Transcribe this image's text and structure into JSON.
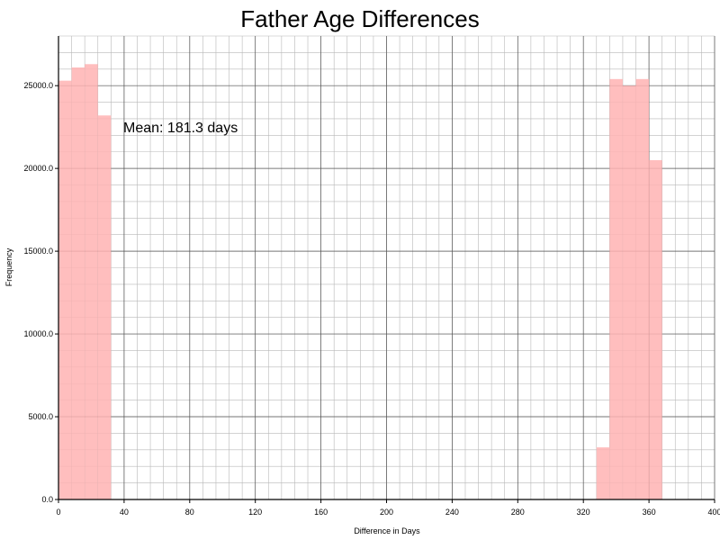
{
  "chart_data": {
    "type": "bar",
    "title": "Father Age Differences",
    "xlabel": "Difference in Days",
    "ylabel": "Frequency",
    "xlim": [
      0,
      400
    ],
    "ylim": [
      0,
      28000
    ],
    "xticks": [
      0,
      40,
      80,
      120,
      160,
      200,
      240,
      280,
      320,
      360,
      400
    ],
    "yticks": [
      "0.0",
      "5000.0",
      "10000.0",
      "15000.0",
      "20000.0",
      "25000.0"
    ],
    "grid": true,
    "bar_color": "#ffb3b3",
    "annotation": "Mean: 181.3 days",
    "bins": [
      {
        "x0": 0,
        "x1": 8,
        "value": 25300
      },
      {
        "x0": 8,
        "x1": 16,
        "value": 26100
      },
      {
        "x0": 16,
        "x1": 24,
        "value": 26300
      },
      {
        "x0": 24,
        "x1": 32,
        "value": 23200
      },
      {
        "x0": 328,
        "x1": 336,
        "value": 3150
      },
      {
        "x0": 336,
        "x1": 344,
        "value": 25400
      },
      {
        "x0": 344,
        "x1": 352,
        "value": 25000
      },
      {
        "x0": 352,
        "x1": 360,
        "value": 25400
      },
      {
        "x0": 360,
        "x1": 368,
        "value": 20500
      }
    ]
  }
}
